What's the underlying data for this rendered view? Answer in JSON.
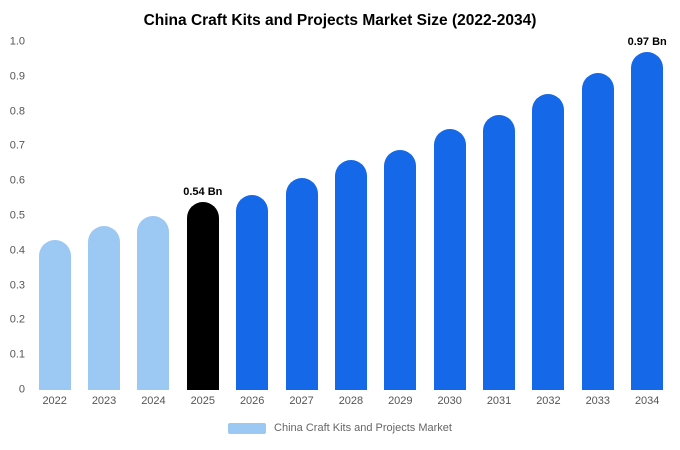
{
  "title": "China Craft Kits and Projects Market Size (2022-2034)",
  "chart_data": {
    "type": "bar",
    "title": "China Craft Kits and Projects Market Size (2022-2034)",
    "categories": [
      "2022",
      "2023",
      "2024",
      "2025",
      "2026",
      "2027",
      "2028",
      "2029",
      "2030",
      "2031",
      "2032",
      "2033",
      "2034"
    ],
    "values": [
      0.43,
      0.47,
      0.5,
      0.54,
      0.56,
      0.61,
      0.66,
      0.69,
      0.75,
      0.79,
      0.85,
      0.91,
      0.97
    ],
    "unit": "Bn",
    "bar_colors": [
      "#9cc8f4",
      "#9cc8f4",
      "#9cc8f4",
      "#000000",
      "#1568e8",
      "#1568e8",
      "#1568e8",
      "#1568e8",
      "#1568e8",
      "#1568e8",
      "#1568e8",
      "#1568e8",
      "#1568e8"
    ],
    "annotations": [
      {
        "category": "2025",
        "text": "0.54 Bn"
      },
      {
        "category": "2034",
        "text": "0.97 Bn"
      }
    ],
    "xlabel": "",
    "ylabel": "",
    "ylim": [
      0,
      1.0
    ],
    "ytick_labels": [
      "0",
      "0.1",
      "0.2",
      "0.3",
      "0.4",
      "0.5",
      "0.6",
      "0.7",
      "0.8",
      "0.9",
      "1.0"
    ],
    "grid": false,
    "legend_position": "bottom"
  },
  "legend": {
    "label": "China Craft Kits and Projects Market",
    "swatch_color": "#9cc8f4"
  },
  "colors": {
    "light_blue": "#9cc8f4",
    "blue": "#1568e8",
    "highlight_black": "#000000",
    "axis_text": "#555555",
    "background": "#ffffff"
  }
}
